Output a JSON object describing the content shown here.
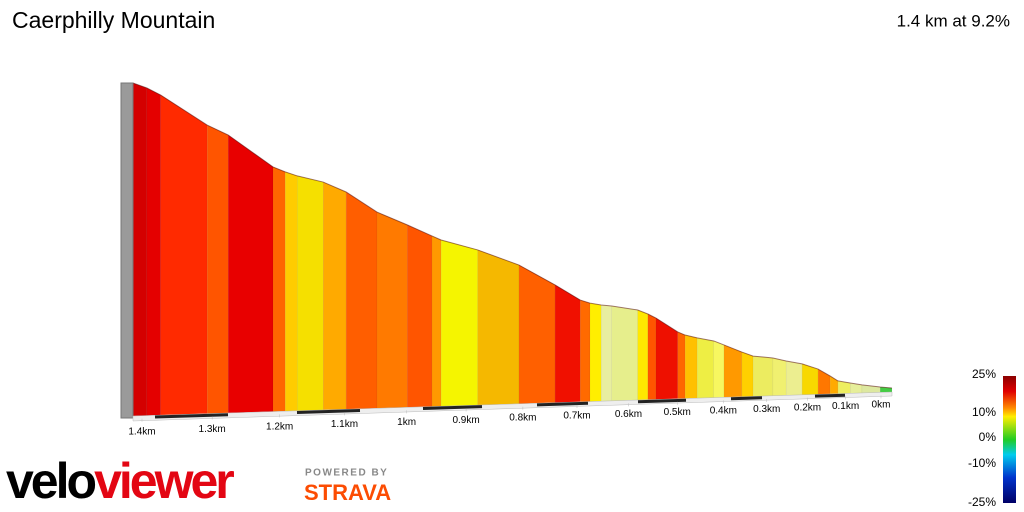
{
  "chart_data": {
    "type": "gradient-profile",
    "title": "Caerphilly Mountain",
    "summary": "1.4 km at 9.2%",
    "x": [
      1.4,
      1.381,
      1.362,
      1.297,
      1.267,
      1.202,
      1.184,
      1.166,
      1.127,
      1.092,
      1.044,
      0.996,
      0.956,
      0.941,
      0.88,
      0.809,
      0.745,
      0.699,
      0.681,
      0.66,
      0.64,
      0.59,
      0.57,
      0.554,
      0.51,
      0.495,
      0.47,
      0.435,
      0.413,
      0.374,
      0.349,
      0.304,
      0.273,
      0.235,
      0.196,
      0.166,
      0.146,
      0.114,
      0.083,
      0.033,
      0
    ],
    "elevation": [
      129.0,
      126.9,
      123.9,
      111.2,
      107.0,
      93.5,
      91.4,
      89.7,
      87.1,
      82.9,
      74.4,
      69.0,
      64.3,
      62.6,
      58.4,
      52.0,
      43.6,
      37.2,
      35.9,
      35.1,
      34.7,
      33.0,
      31.3,
      29.6,
      23.7,
      22.4,
      21.2,
      19.9,
      18.2,
      15.2,
      13.5,
      12.7,
      11.4,
      10.2,
      8.0,
      5.1,
      3.0,
      2.1,
      1.3,
      0.4,
      0
    ],
    "segment_colors": [
      "#d40000",
      "#e40000",
      "#ff2a00",
      "#ff5500",
      "#e80000",
      "#ff6600",
      "#ffcc00",
      "#f5e000",
      "#ffaa00",
      "#ff5e00",
      "#ff7a00",
      "#ff5500",
      "#ff9900",
      "#f5f500",
      "#f5b800",
      "#ff6000",
      "#f01000",
      "#ff6a00",
      "#ffee00",
      "#e8eea0",
      "#e6ee8c",
      "#ffe800",
      "#ff5500",
      "#ee1000",
      "#ff6600",
      "#ffc000",
      "#eeee44",
      "#f7f760",
      "#ff9900",
      "#ffd000",
      "#ecec60",
      "#f0f070",
      "#ecee90",
      "#f8d800",
      "#ff7700",
      "#ffaa00",
      "#eeee60",
      "#e6ee9a",
      "#dde8a0",
      "#44cc44"
    ],
    "xlim": [
      1.4,
      0
    ],
    "xticks": [
      {
        "value": 1.4,
        "label": "1.4km"
      },
      {
        "value": 1.3,
        "label": "1.3km"
      },
      {
        "value": 1.2,
        "label": "1.2km"
      },
      {
        "value": 1.1,
        "label": "1.1km"
      },
      {
        "value": 1,
        "label": "1km"
      },
      {
        "value": 0.9,
        "label": "0.9km"
      },
      {
        "value": 0.8,
        "label": "0.8km"
      },
      {
        "value": 0.7,
        "label": "0.7km"
      },
      {
        "value": 0.6,
        "label": "0.6km"
      },
      {
        "value": 0.5,
        "label": "0.5km"
      },
      {
        "value": 0.4,
        "label": "0.4km"
      },
      {
        "value": 0.3,
        "label": "0.3km"
      },
      {
        "value": 0.2,
        "label": "0.2km"
      },
      {
        "value": 0.1,
        "label": "0.1km"
      },
      {
        "value": 0,
        "label": "0km"
      }
    ],
    "gradient_legend": [
      "25%",
      "10%",
      "0%",
      "-10%",
      "-25%"
    ]
  },
  "branding": {
    "logo_velo": "velo",
    "logo_viewer": "viewer",
    "powered_by": "POWERED BY",
    "strava": "STRAVA"
  }
}
